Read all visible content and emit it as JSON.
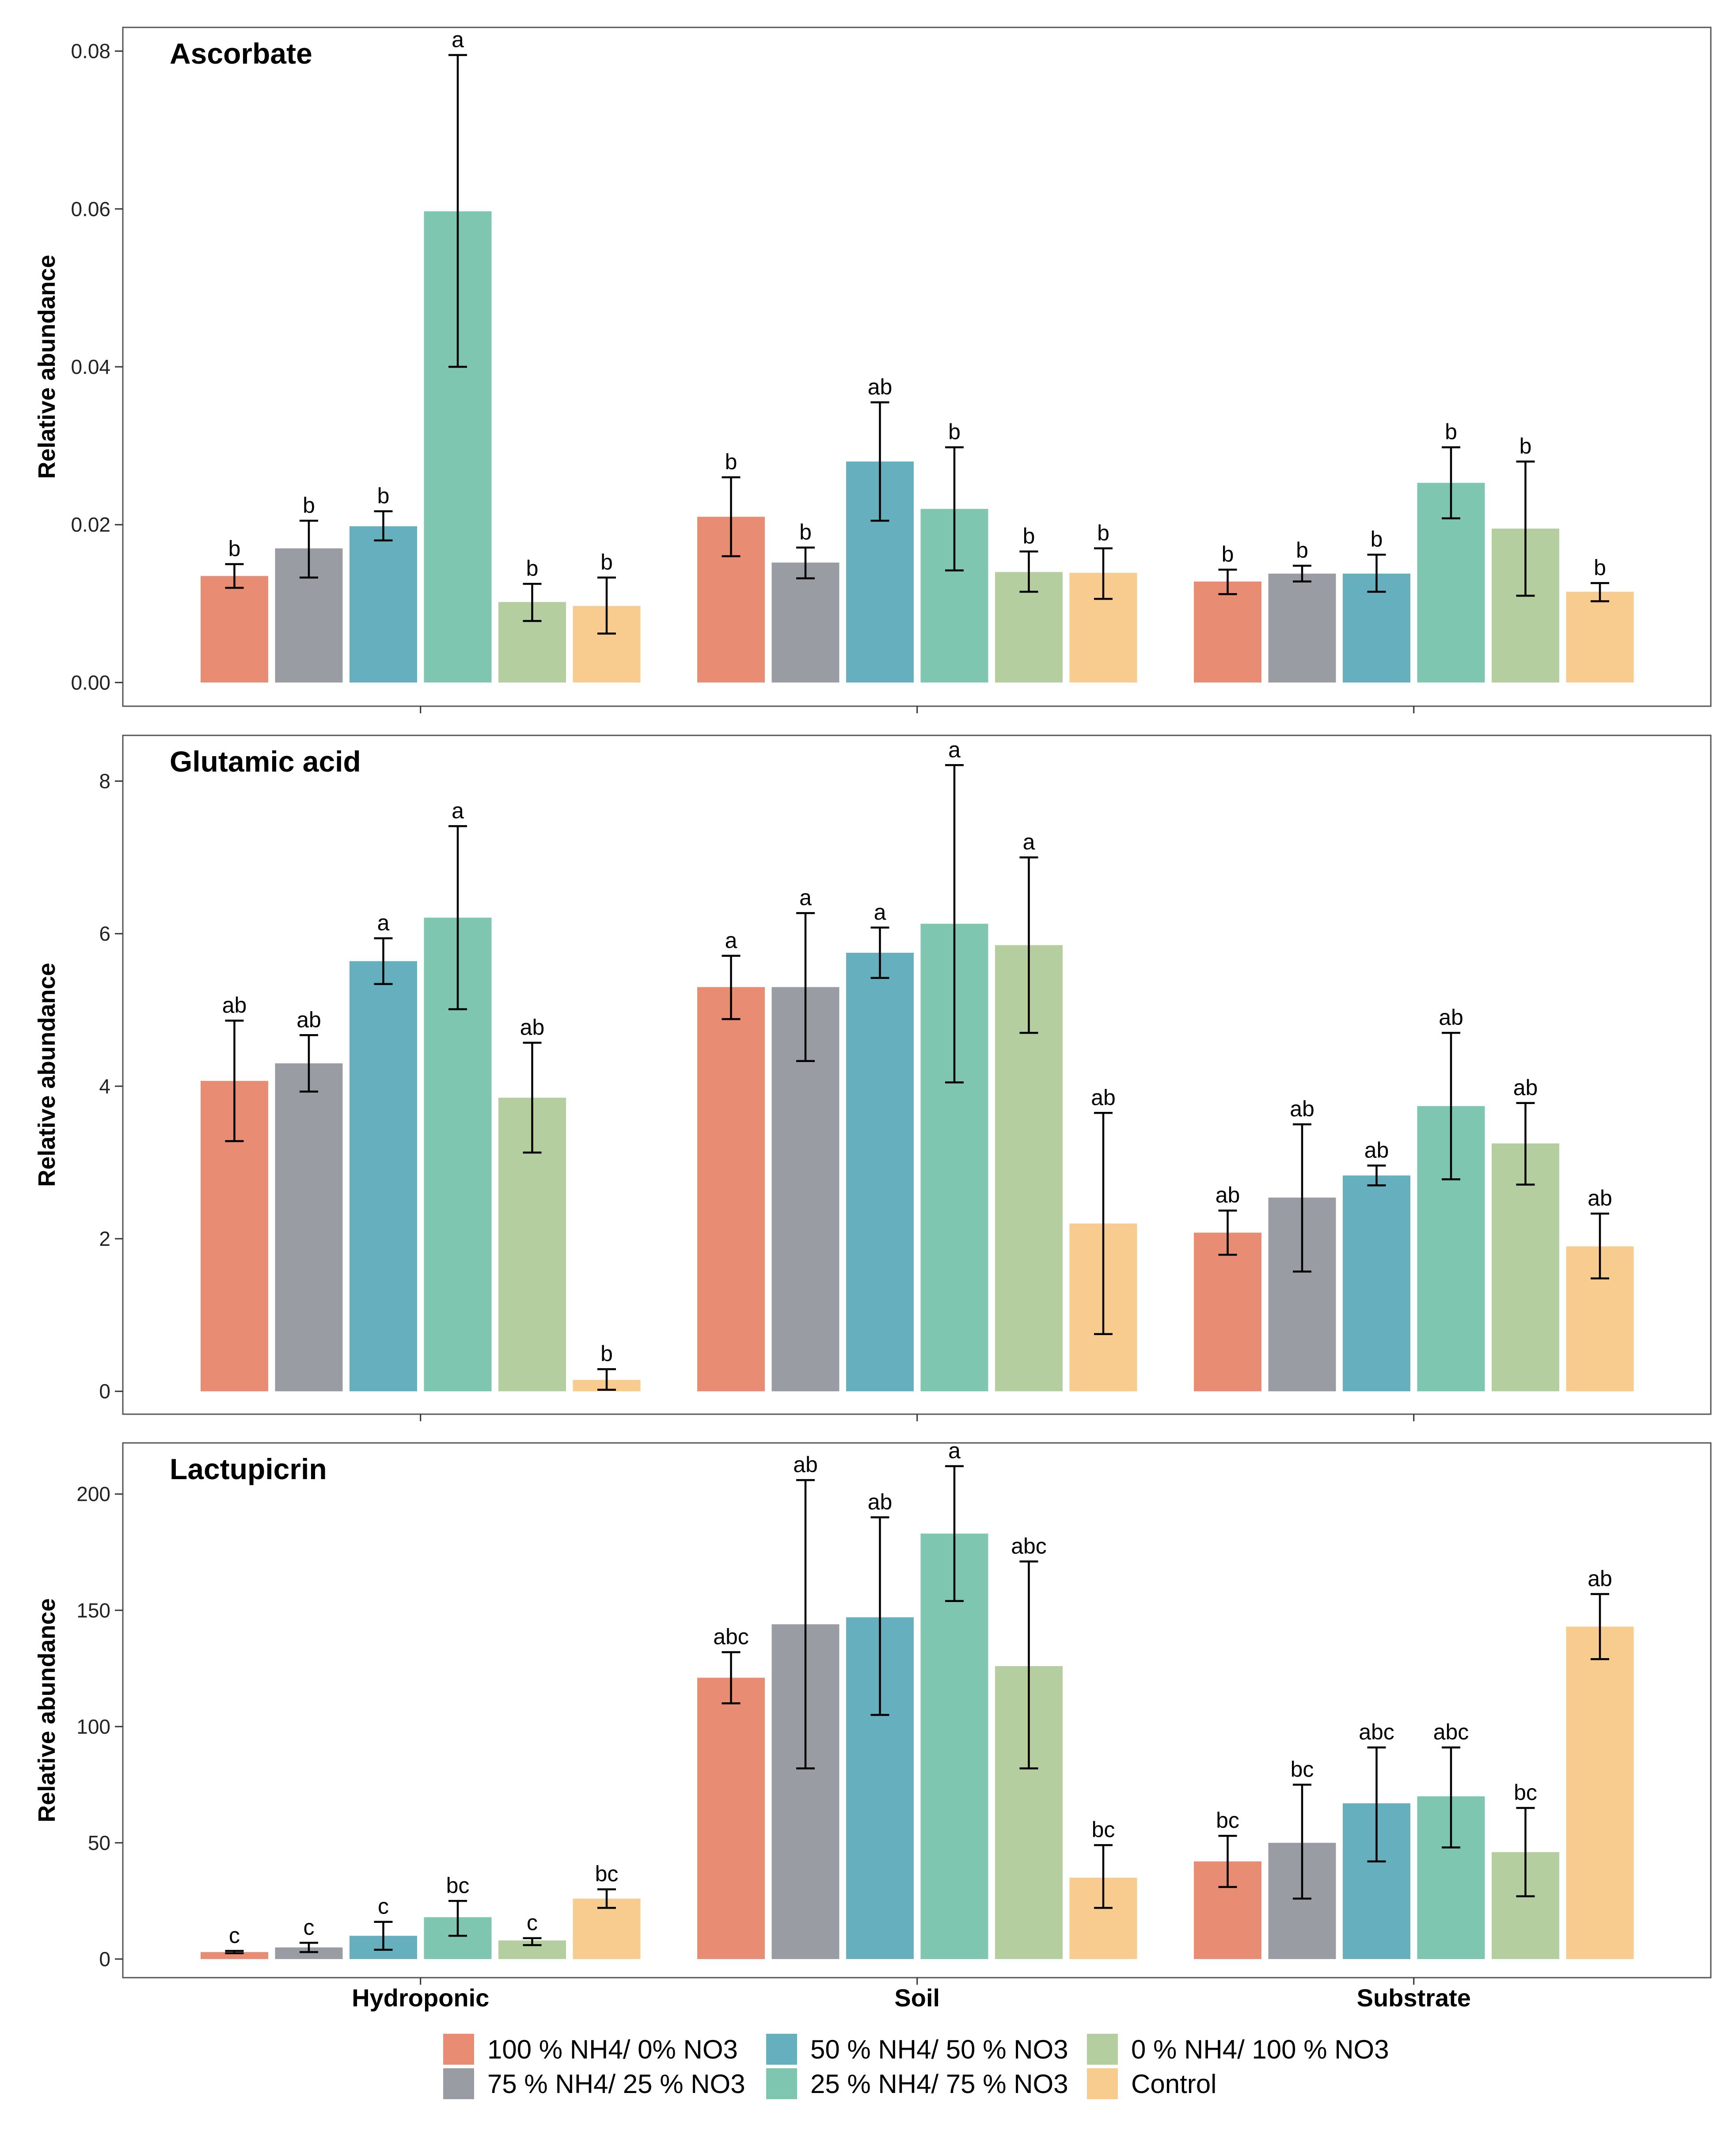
{
  "chart_data": {
    "type": "bar",
    "categories": [
      "Hydroponic",
      "Soil",
      "Substrate"
    ],
    "legend": {
      "placement": "bottom",
      "entries": [
        {
          "name": "100 % NH4/ 0% NO3",
          "color": "#E88D74"
        },
        {
          "name": "75 % NH4/ 25 % NO3",
          "color": "#999CA2"
        },
        {
          "name": "50 % NH4/ 50 % NO3",
          "color": "#66AFBE"
        },
        {
          "name": "25 % NH4/ 75 % NO3",
          "color": "#7FC6B1"
        },
        {
          "name": "0 % NH4/ 100 % NO3",
          "color": "#B4CE9F"
        },
        {
          "name": "Control",
          "color": "#F8CB8F"
        }
      ]
    },
    "panels": [
      {
        "title": "Ascorbate",
        "ylabel": "Relative abundance",
        "ylim": [
          -0.003,
          0.083
        ],
        "yticks": [
          0.0,
          0.02,
          0.04,
          0.06,
          0.08
        ],
        "yticklabels": [
          "0.00",
          "0.02",
          "0.04",
          "0.06",
          "0.08"
        ],
        "series": [
          {
            "name": "100 % NH4/ 0% NO3",
            "values": [
              0.0135,
              0.021,
              0.0128
            ],
            "lower": [
              0.012,
              0.016,
              0.0112
            ],
            "upper": [
              0.015,
              0.026,
              0.0143
            ],
            "labels": [
              "b",
              "b",
              "b"
            ]
          },
          {
            "name": "75 % NH4/ 25 % NO3",
            "values": [
              0.017,
              0.0152,
              0.0138
            ],
            "lower": [
              0.0133,
              0.0132,
              0.0128
            ],
            "upper": [
              0.0205,
              0.0171,
              0.0148
            ],
            "labels": [
              "b",
              "b",
              "b"
            ]
          },
          {
            "name": "50 % NH4/ 50 % NO3",
            "values": [
              0.0198,
              0.028,
              0.0138
            ],
            "lower": [
              0.018,
              0.0205,
              0.0115
            ],
            "upper": [
              0.0217,
              0.0355,
              0.0162
            ],
            "labels": [
              "b",
              "ab",
              "b"
            ]
          },
          {
            "name": "25 % NH4/ 75 % NO3",
            "values": [
              0.0597,
              0.022,
              0.0253
            ],
            "lower": [
              0.04,
              0.0142,
              0.0208
            ],
            "upper": [
              0.0795,
              0.0298,
              0.0298
            ],
            "labels": [
              "a",
              "b",
              "b"
            ]
          },
          {
            "name": "0 % NH4/ 100 % NO3",
            "values": [
              0.0102,
              0.014,
              0.0195
            ],
            "lower": [
              0.0078,
              0.0115,
              0.011
            ],
            "upper": [
              0.0125,
              0.0166,
              0.028
            ],
            "labels": [
              "b",
              "b",
              "b"
            ]
          },
          {
            "name": "Control",
            "values": [
              0.0097,
              0.0139,
              0.0115
            ],
            "lower": [
              0.0062,
              0.0106,
              0.0103
            ],
            "upper": [
              0.0133,
              0.017,
              0.0126
            ],
            "labels": [
              "b",
              "b",
              "b"
            ]
          }
        ]
      },
      {
        "title": "Glutamic acid",
        "ylabel": "Relative abundance",
        "ylim": [
          -0.3,
          8.6
        ],
        "yticks": [
          0,
          2,
          4,
          6,
          8
        ],
        "yticklabels": [
          "0",
          "2",
          "4",
          "6",
          "8"
        ],
        "series": [
          {
            "name": "100 % NH4/ 0% NO3",
            "values": [
              4.07,
              5.3,
              2.08
            ],
            "lower": [
              3.28,
              4.88,
              1.79
            ],
            "upper": [
              4.86,
              5.71,
              2.37
            ],
            "labels": [
              "ab",
              "a",
              "ab"
            ]
          },
          {
            "name": "75 % NH4/ 25 % NO3",
            "values": [
              4.3,
              5.3,
              2.54
            ],
            "lower": [
              3.93,
              4.33,
              1.57
            ],
            "upper": [
              4.67,
              6.27,
              3.5
            ],
            "labels": [
              "ab",
              "a",
              "ab"
            ]
          },
          {
            "name": "50 % NH4/ 50 % NO3",
            "values": [
              5.64,
              5.75,
              2.83
            ],
            "lower": [
              5.34,
              5.42,
              2.7
            ],
            "upper": [
              5.94,
              6.08,
              2.96
            ],
            "labels": [
              "a",
              "a",
              "ab"
            ]
          },
          {
            "name": "25 % NH4/ 75 % NO3",
            "values": [
              6.21,
              6.13,
              3.74
            ],
            "lower": [
              5.01,
              4.05,
              2.78
            ],
            "upper": [
              7.41,
              8.21,
              4.7
            ],
            "labels": [
              "a",
              "a",
              "ab"
            ]
          },
          {
            "name": "0 % NH4/ 100 % NO3",
            "values": [
              3.85,
              5.85,
              3.25
            ],
            "lower": [
              3.13,
              4.7,
              2.71
            ],
            "upper": [
              4.57,
              7.0,
              3.78
            ],
            "labels": [
              "ab",
              "a",
              "ab"
            ]
          },
          {
            "name": "Control",
            "values": [
              0.15,
              2.2,
              1.9
            ],
            "lower": [
              0.02,
              0.75,
              1.48
            ],
            "upper": [
              0.29,
              3.65,
              2.33
            ],
            "labels": [
              "b",
              "ab",
              "ab"
            ]
          }
        ]
      },
      {
        "title": "Lactupicrin",
        "ylabel": "Relative abundance",
        "ylim": [
          -8,
          222
        ],
        "yticks": [
          0,
          50,
          100,
          150,
          200
        ],
        "yticklabels": [
          "0",
          "50",
          "100",
          "150",
          "200"
        ],
        "series": [
          {
            "name": "100 % NH4/ 0% NO3",
            "values": [
              3,
              121,
              42
            ],
            "lower": [
              2.5,
              110,
              31
            ],
            "upper": [
              3.5,
              132,
              53
            ],
            "labels": [
              "c",
              "abc",
              "bc"
            ]
          },
          {
            "name": "75 % NH4/ 25 % NO3",
            "values": [
              5,
              144,
              50
            ],
            "lower": [
              3,
              82,
              26
            ],
            "upper": [
              7,
              206,
              75
            ],
            "labels": [
              "c",
              "ab",
              "bc"
            ]
          },
          {
            "name": "50 % NH4/ 50 % NO3",
            "values": [
              10,
              147,
              67
            ],
            "lower": [
              4,
              105,
              42
            ],
            "upper": [
              16,
              190,
              91
            ],
            "labels": [
              "c",
              "ab",
              "abc"
            ]
          },
          {
            "name": "25 % NH4/ 75 % NO3",
            "values": [
              18,
              183,
              70
            ],
            "lower": [
              10,
              154,
              48
            ],
            "upper": [
              25,
              212,
              91
            ],
            "labels": [
              "bc",
              "a",
              "abc"
            ]
          },
          {
            "name": "0 % NH4/ 100 % NO3",
            "values": [
              8,
              126,
              46
            ],
            "lower": [
              6,
              82,
              27
            ],
            "upper": [
              9,
              171,
              65
            ],
            "labels": [
              "c",
              "abc",
              "bc"
            ]
          },
          {
            "name": "Control",
            "values": [
              26,
              35,
              143
            ],
            "lower": [
              22,
              22,
              129
            ],
            "upper": [
              30,
              49,
              157
            ],
            "labels": [
              "bc",
              "bc",
              "ab"
            ]
          }
        ]
      }
    ]
  }
}
